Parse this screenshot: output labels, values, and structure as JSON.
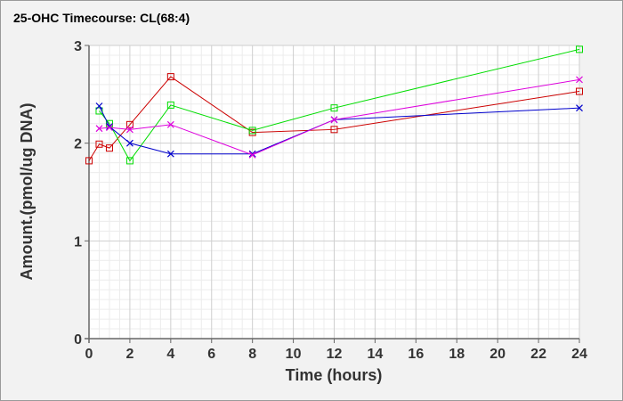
{
  "chart_data": {
    "type": "line",
    "title": "25-OHC Timecourse: CL(68:4)",
    "xlabel": "Time (hours)",
    "ylabel": "Amount.(pmol/ug DNA)",
    "xlim": [
      0,
      24
    ],
    "ylim": [
      0,
      3
    ],
    "xticks": [
      0,
      2,
      4,
      6,
      8,
      10,
      12,
      14,
      16,
      18,
      20,
      22,
      24
    ],
    "yticks": [
      0,
      1,
      2,
      3
    ],
    "grid": true,
    "series": [
      {
        "marker": "square",
        "color": "#cc0000",
        "x": [
          0,
          0.5,
          1,
          2,
          4,
          8,
          12,
          24
        ],
        "y": [
          1.82,
          1.99,
          1.95,
          2.19,
          2.68,
          2.11,
          2.14,
          2.53
        ]
      },
      {
        "marker": "square",
        "color": "#00dd00",
        "x": [
          0.5,
          1,
          2,
          4,
          8,
          12,
          24
        ],
        "y": [
          2.33,
          2.2,
          1.82,
          2.39,
          2.13,
          2.36,
          2.96
        ]
      },
      {
        "marker": "x",
        "color": "#0000cc",
        "x": [
          0.5,
          1,
          2,
          4,
          8,
          12,
          24
        ],
        "y": [
          2.38,
          2.17,
          2.0,
          1.89,
          1.89,
          2.24,
          2.36
        ]
      },
      {
        "marker": "x",
        "color": "#dd00dd",
        "x": [
          0.5,
          1,
          2,
          4,
          8,
          12,
          24
        ],
        "y": [
          2.15,
          2.16,
          2.14,
          2.19,
          1.88,
          2.24,
          2.65
        ]
      }
    ]
  }
}
